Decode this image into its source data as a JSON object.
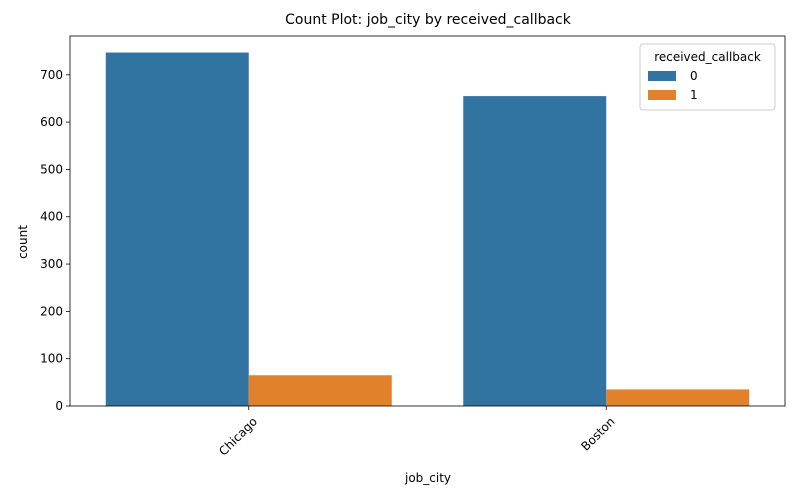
{
  "chart_data": {
    "type": "bar",
    "title": "Count Plot: job_city by received_callback",
    "xlabel": "job_city",
    "ylabel": "count",
    "categories": [
      "Chicago",
      "Boston"
    ],
    "series": [
      {
        "name": "0",
        "values": [
          747,
          655
        ],
        "color": "#3274a1"
      },
      {
        "name": "1",
        "values": [
          65,
          35
        ],
        "color": "#e1812c"
      }
    ],
    "ylim": [
      0,
      782
    ],
    "yticks": [
      0,
      100,
      200,
      300,
      400,
      500,
      600,
      700
    ],
    "legend": {
      "title": "received_callback",
      "placement": "top-right"
    },
    "grid": false,
    "xtick_rotation": 45
  }
}
